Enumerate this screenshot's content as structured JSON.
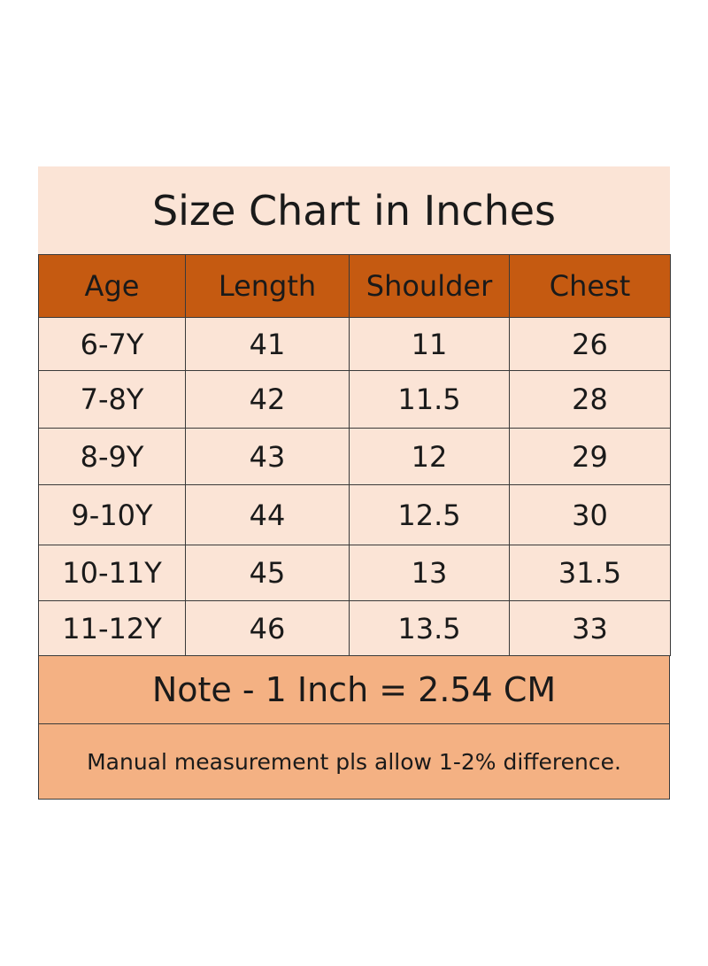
{
  "table": {
    "title": "Size Chart in Inches",
    "header": [
      "Age",
      "Length",
      "Shoulder",
      "Chest"
    ],
    "rows": [
      [
        "6-7Y",
        41,
        11,
        26
      ],
      [
        "7-8Y",
        42,
        11.5,
        28
      ],
      [
        "8-9Y",
        43,
        12,
        29
      ],
      [
        "9-10Y",
        44,
        12.5,
        30
      ],
      [
        "10-11Y",
        45,
        13,
        31.5
      ],
      [
        "11-12Y",
        46,
        13.5,
        33
      ]
    ],
    "note": "Note - 1 Inch = 2.54 CM",
    "footnote": "Manual measurement pls allow 1-2% difference."
  }
}
